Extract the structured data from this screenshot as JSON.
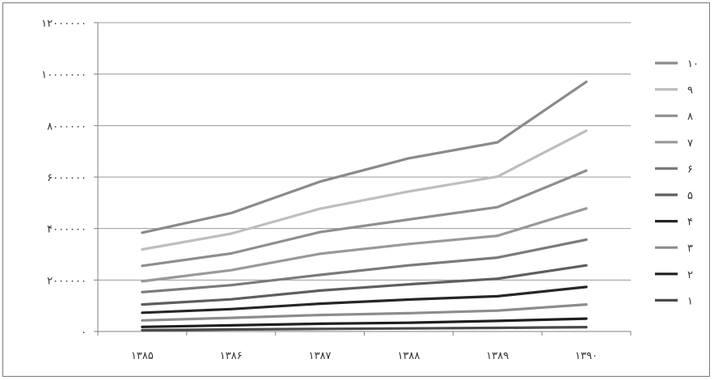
{
  "chart_data": {
    "type": "line",
    "x": [
      "۱۳۸۵",
      "۱۳۸۶",
      "۱۳۸۷",
      "۱۳۸۸",
      "۱۳۸۹",
      "۱۳۹۰"
    ],
    "y_ticks": [
      {
        "value": 0,
        "label": "۰"
      },
      {
        "value": 2000000,
        "label": "۲۰۰۰۰۰۰"
      },
      {
        "value": 4000000,
        "label": "۴۰۰۰۰۰۰"
      },
      {
        "value": 6000000,
        "label": "۶۰۰۰۰۰۰"
      },
      {
        "value": 8000000,
        "label": "۸۰۰۰۰۰۰"
      },
      {
        "value": 10000000,
        "label": "۱۰۰۰۰۰۰۰"
      },
      {
        "value": 12000000,
        "label": "۱۲۰۰۰۰۰۰"
      }
    ],
    "ylim": [
      0,
      12000000
    ],
    "grid": "horizontal",
    "legend_position": "right",
    "series": [
      {
        "name": "۱",
        "color": "#4a4a4a",
        "values": [
          50000,
          80000,
          100000,
          120000,
          140000,
          170000
        ]
      },
      {
        "name": "۲",
        "color": "#1f1f1f",
        "values": [
          180000,
          240000,
          300000,
          340000,
          410000,
          500000
        ]
      },
      {
        "name": "۳",
        "color": "#8c8c8c",
        "values": [
          430000,
          530000,
          640000,
          710000,
          810000,
          1050000
        ]
      },
      {
        "name": "۴",
        "color": "#262626",
        "values": [
          730000,
          870000,
          1080000,
          1240000,
          1370000,
          1730000
        ]
      },
      {
        "name": "۵",
        "color": "#5e5e5e",
        "values": [
          1050000,
          1250000,
          1590000,
          1830000,
          2050000,
          2570000
        ]
      },
      {
        "name": "۶",
        "color": "#7a7a7a",
        "values": [
          1530000,
          1800000,
          2200000,
          2570000,
          2870000,
          3570000
        ]
      },
      {
        "name": "۷",
        "color": "#999999",
        "values": [
          1950000,
          2380000,
          3020000,
          3400000,
          3720000,
          4780000
        ]
      },
      {
        "name": "۸",
        "color": "#8e8e8e",
        "values": [
          2550000,
          3030000,
          3860000,
          4350000,
          4830000,
          6250000
        ]
      },
      {
        "name": "۹",
        "color": "#bebebe",
        "values": [
          3190000,
          3800000,
          4770000,
          5440000,
          6020000,
          7800000
        ]
      },
      {
        "name": "۱۰",
        "color": "#8a8a8a",
        "values": [
          3840000,
          4600000,
          5820000,
          6730000,
          7350000,
          9700000
        ]
      }
    ]
  }
}
